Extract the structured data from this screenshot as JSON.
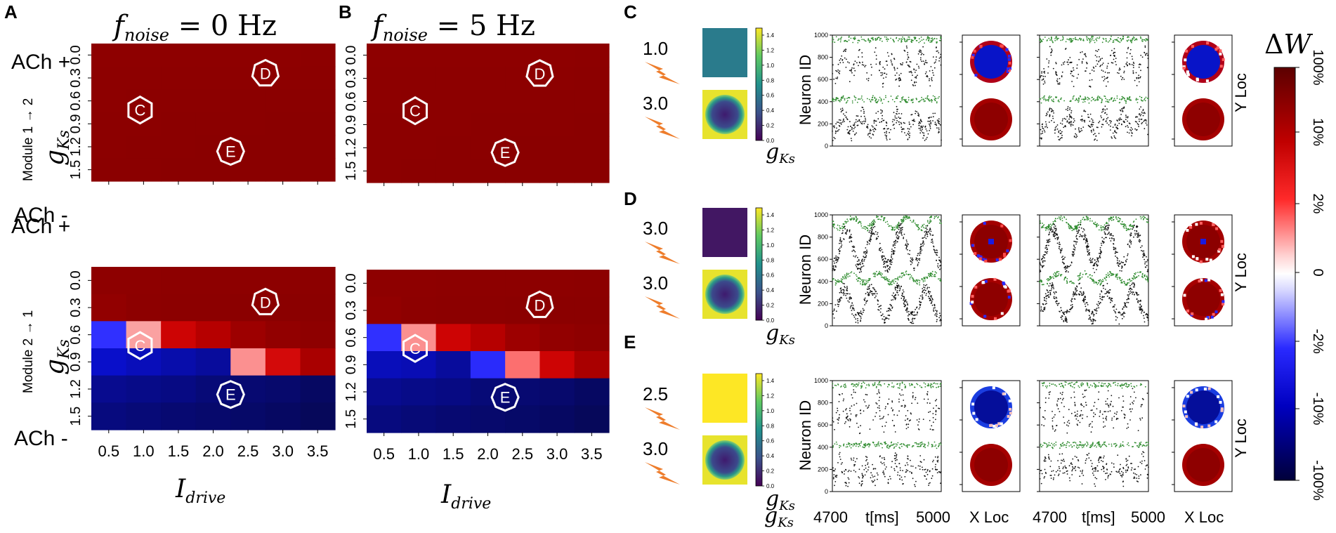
{
  "panel_letters": [
    "A",
    "B",
    "C",
    "D",
    "E"
  ],
  "heatmaps": {
    "titles": {
      "A": {
        "main": "f",
        "sub": "noise",
        "tail": " = 0 Hz"
      },
      "B": {
        "main": "f",
        "sub": "noise",
        "tail": " = 5 Hz"
      }
    },
    "row_labels": {
      "top": "Module 1 → 2",
      "bottom": "Module 2 → 1"
    },
    "ach_plus": "ACh +",
    "ach_minus": "ACh -",
    "ylabel": {
      "main": "g",
      "sub": "Ks"
    },
    "xlabel": {
      "main": "I",
      "sub": "drive"
    },
    "x_ticks": [
      "0.5",
      "1.0",
      "1.5",
      "2.0",
      "2.5",
      "3.0",
      "3.5"
    ],
    "y_ticks": [
      "0.0",
      "0.3",
      "0.6",
      "0.9",
      "1.2",
      "1.5"
    ],
    "markers": [
      {
        "label": "C",
        "shape": "hexagon",
        "x_index": 1.1,
        "y_index": 2.9
      },
      {
        "label": "D",
        "shape": "heptagon",
        "x_index": 5.0,
        "y_index": 1.3
      },
      {
        "label": "E",
        "shape": "octagon",
        "x_index": 4.0,
        "y_index": 4.7
      }
    ]
  },
  "chart_data": [
    {
      "type": "heatmap",
      "panel": "A",
      "title": "f_noise = 0 Hz",
      "ylabel": "Module 1 → 2  g_Ks",
      "xlabel": "",
      "x": [
        0.5,
        1.0,
        1.5,
        2.0,
        2.5,
        3.0,
        3.5
      ],
      "y": [
        0.0,
        0.3,
        0.6,
        0.9,
        1.2,
        1.5
      ],
      "z_percent": [
        [
          95,
          95,
          95,
          95,
          95,
          95,
          96
        ],
        [
          96,
          96,
          96,
          96,
          96,
          96,
          97
        ],
        [
          96,
          97,
          97,
          97,
          98,
          98,
          98
        ],
        [
          97,
          97,
          98,
          98,
          98,
          99,
          99
        ],
        [
          97,
          98,
          98,
          99,
          99,
          99,
          100
        ],
        [
          98,
          98,
          99,
          99,
          99,
          100,
          100
        ]
      ]
    },
    {
      "type": "heatmap",
      "panel": "B",
      "title": "f_noise = 5 Hz",
      "ylabel": "",
      "xlabel": "",
      "x": [
        0.5,
        1.0,
        1.5,
        2.0,
        2.5,
        3.0,
        3.5
      ],
      "y": [
        0.0,
        0.3,
        0.6,
        0.9,
        1.2,
        1.5
      ],
      "z_percent": [
        [
          95,
          95,
          95,
          95,
          95,
          95,
          96
        ],
        [
          96,
          96,
          96,
          96,
          96,
          96,
          97
        ],
        [
          96,
          97,
          97,
          97,
          97,
          98,
          98
        ],
        [
          97,
          97,
          97,
          98,
          98,
          98,
          99
        ],
        [
          97,
          97,
          98,
          98,
          99,
          99,
          99
        ],
        [
          97,
          98,
          98,
          99,
          99,
          99,
          100
        ]
      ]
    },
    {
      "type": "heatmap",
      "panel": "A",
      "title": "",
      "ylabel": "Module 2 → 1  g_Ks",
      "xlabel": "I_drive",
      "x": [
        0.5,
        1.0,
        1.5,
        2.0,
        2.5,
        3.0,
        3.5
      ],
      "y": [
        0.0,
        0.3,
        0.6,
        0.9,
        1.2,
        1.5
      ],
      "z_percent": [
        [
          95,
          95,
          96,
          96,
          96,
          96,
          97
        ],
        [
          90,
          96,
          97,
          97,
          98,
          98,
          98
        ],
        [
          -4,
          1,
          40,
          60,
          80,
          90,
          95
        ],
        [
          -55,
          -60,
          -65,
          -70,
          1.3,
          30,
          70
        ],
        [
          -75,
          -78,
          -80,
          -85,
          -88,
          -90,
          -95
        ],
        [
          -82,
          -85,
          -88,
          -90,
          -92,
          -95,
          -100
        ]
      ]
    },
    {
      "type": "heatmap",
      "panel": "B",
      "title": "",
      "ylabel": "",
      "xlabel": "I_drive",
      "x": [
        0.5,
        1.0,
        1.5,
        2.0,
        2.5,
        3.0,
        3.5
      ],
      "y": [
        0.0,
        0.3,
        0.6,
        0.9,
        1.2,
        1.5
      ],
      "z_percent": [
        [
          95,
          95,
          96,
          96,
          96,
          96,
          97
        ],
        [
          92,
          96,
          97,
          97,
          98,
          98,
          98
        ],
        [
          -4,
          1.3,
          40,
          60,
          80,
          90,
          95
        ],
        [
          -60,
          -62,
          -70,
          -6,
          2,
          40,
          70
        ],
        [
          -75,
          -78,
          -80,
          -85,
          -88,
          -90,
          -95
        ],
        [
          -82,
          -85,
          -88,
          -90,
          -92,
          -95,
          -100
        ]
      ]
    }
  ],
  "colorbar": {
    "title": {
      "main": "Δ",
      "tail": "W"
    },
    "ticks": [
      "100%",
      "10%",
      "2%",
      "0",
      "-2%",
      "-10%",
      "-100%"
    ]
  },
  "rows": [
    {
      "panel": "C",
      "stim_top": "1.0",
      "stim_bottom": "3.0",
      "gks_top_level": 0.6,
      "gks_bottom_edge": 1.4,
      "gks_bottom_center": 0.0
    },
    {
      "panel": "D",
      "stim_top": "3.0",
      "stim_bottom": "3.0",
      "gks_top_level": 0.1,
      "gks_bottom_edge": 1.4,
      "gks_bottom_center": 0.0
    },
    {
      "panel": "E",
      "stim_top": "2.5",
      "stim_bottom": "3.0",
      "gks_top_level": 1.45,
      "gks_bottom_edge": 1.4,
      "gks_bottom_center": 0.0
    }
  ],
  "gks_colorbar_ticks": [
    "1.4",
    "1.2",
    "1.0",
    "0.8",
    "0.6",
    "0.4",
    "0.2",
    "0.0"
  ],
  "raster": {
    "ylabel": "Neuron ID",
    "y_ticks": [
      "1000",
      "800",
      "600",
      "400",
      "200",
      "0"
    ],
    "x_start": "4700",
    "x_label": "t[ms]",
    "x_end": "5000"
  },
  "loc_labels": {
    "y": "Y Loc",
    "x": "X Loc"
  },
  "gks_label": {
    "main": "g",
    "sub": "Ks"
  },
  "colors": {
    "red_dark": "#7b0000",
    "red": "#d40000",
    "white": "#f6f6f6",
    "blue": "#0a14f0",
    "blue_dark": "#050a60",
    "raster_green": "#2e8b2e",
    "raster_black": "#111111",
    "bolt": "#ee7d2c",
    "viridis_low": "#440154",
    "viridis_high": "#fde725",
    "teal": "#21a286",
    "navy": "#3b4a8c"
  }
}
